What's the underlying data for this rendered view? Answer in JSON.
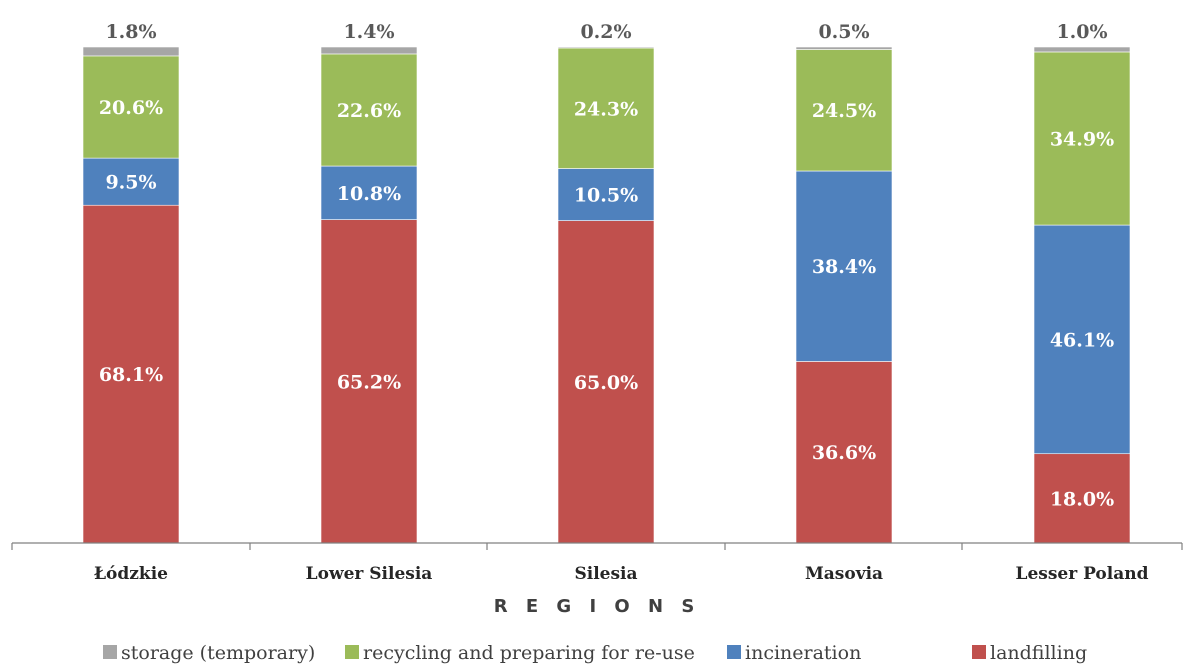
{
  "chart_data": {
    "type": "bar",
    "stacked": true,
    "categories": [
      "Łódzkie",
      "Lower Silesia",
      "Silesia",
      "Masovia",
      "Lesser Poland"
    ],
    "series": [
      {
        "name": "landfilling",
        "color": "#C0504D",
        "values": [
          68.1,
          65.2,
          65.0,
          36.6,
          18.0
        ],
        "labels": [
          "68.1%",
          "65.2%",
          "65.0%",
          "36.6%",
          "18.0%"
        ]
      },
      {
        "name": "incineration",
        "color": "#4F81BD",
        "values": [
          9.5,
          10.8,
          10.5,
          38.4,
          46.1
        ],
        "labels": [
          "9.5%",
          "10.8%",
          "10.5%",
          "38.4%",
          "46.1%"
        ]
      },
      {
        "name": "recycling and preparing for re-use",
        "color": "#9BBB59",
        "values": [
          20.6,
          22.6,
          24.3,
          24.5,
          34.9
        ],
        "labels": [
          "20.6%",
          "22.6%",
          "24.3%",
          "24.5%",
          "34.9%"
        ]
      },
      {
        "name": "storage (temporary)",
        "color": "#A6A6A6",
        "values": [
          1.8,
          1.4,
          0.2,
          0.5,
          1.0
        ],
        "labels": [
          "1.8%",
          "1.4%",
          "0.2%",
          "0.5%",
          "1.0%"
        ]
      }
    ],
    "legend_order": [
      "storage (temporary)",
      "recycling and preparing for re-use",
      "incineration",
      "landfilling"
    ],
    "xlabel": "R E G I O N S",
    "ylabel": "",
    "ylim": [
      0,
      100
    ],
    "grid": false,
    "legend_position": "bottom"
  }
}
